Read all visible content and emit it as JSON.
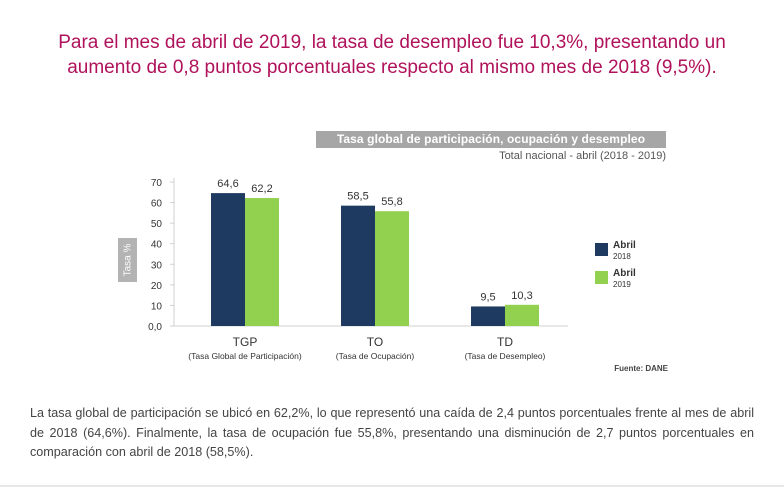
{
  "headline": "Para el mes de abril de 2019, la tasa de desempleo fue 10,3%, presentando un aumento de 0,8 puntos porcentuales respecto al mismo mes de 2018 (9,5%).",
  "chart_data": {
    "type": "bar",
    "title": "Tasa global de participación, ocupación y desempleo",
    "subtitle": "Total nacional - abril (2018 - 2019)",
    "ylabel": "Tasa %",
    "ylim": [
      0,
      70
    ],
    "yticks": [
      "70",
      "60",
      "50",
      "40",
      "30",
      "20",
      "10",
      "0,0"
    ],
    "ytick_values": [
      70,
      60,
      50,
      40,
      30,
      20,
      10,
      0
    ],
    "categories": [
      "TGP",
      "TO",
      "TD"
    ],
    "category_descriptions": [
      "(Tasa Global de Participación)",
      "(Tasa de Ocupación)",
      "(Tasa de Desempleo)"
    ],
    "series": [
      {
        "name": "Abril 2018",
        "values": [
          64.6,
          58.5,
          9.5
        ],
        "labels": [
          "64,6",
          "58,5",
          "9,5"
        ],
        "color": "#1f3a60"
      },
      {
        "name": "Abril 2019",
        "values": [
          62.2,
          55.8,
          10.3
        ],
        "labels": [
          "62,2",
          "55,8",
          "10,3"
        ],
        "color": "#92d050"
      }
    ],
    "legend": [
      {
        "line1": "Abril",
        "line2": "2018"
      },
      {
        "line1": "Abril",
        "line2": "2019"
      }
    ],
    "legend_position": "right",
    "grid": false,
    "source": "Fuente: DANE"
  },
  "paragraph": "La tasa global de participación se ubicó en 62,2%, lo que representó una caída de 2,4 puntos porcentuales frente al mes de abril de 2018 (64,6%). Finalmente, la tasa de ocupación fue 55,8%, presentando una disminución de 2,7 puntos porcentuales en comparación con abril de 2018 (58,5%)."
}
